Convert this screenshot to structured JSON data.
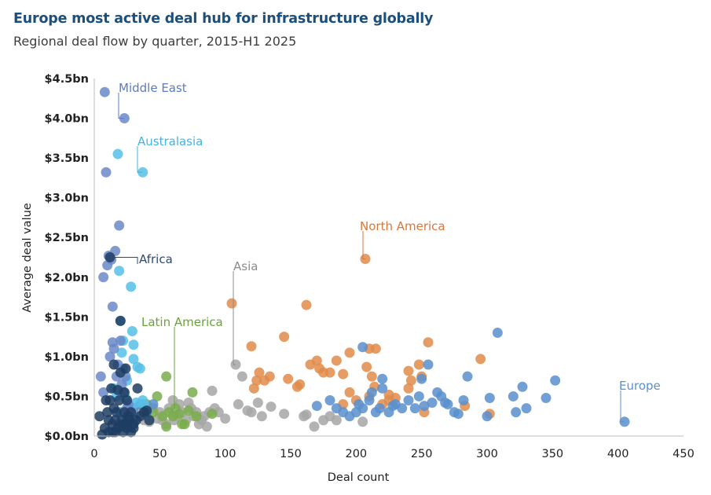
{
  "header": {
    "title": "Europe most active deal hub for infrastructure globally",
    "subtitle": "Regional deal flow by quarter, 2015-H1 2025"
  },
  "chart_data": {
    "type": "scatter",
    "title": "Europe most active deal hub for infrastructure globally",
    "subtitle": "Regional deal flow by quarter, 2015-H1 2025",
    "xlabel": "Deal count",
    "ylabel": "Average deal value",
    "xlim": [
      0,
      450
    ],
    "ylim": [
      0,
      4.5
    ],
    "x_ticks": [
      0,
      50,
      100,
      150,
      200,
      250,
      300,
      350,
      400,
      450
    ],
    "x_tick_labels": [
      "0",
      "50",
      "100",
      "150",
      "200",
      "250",
      "300",
      "350",
      "400",
      "450"
    ],
    "y_ticks": [
      0,
      0.5,
      1.0,
      1.5,
      2.0,
      2.5,
      3.0,
      3.5,
      4.0,
      4.5
    ],
    "y_tick_labels": [
      "$0.0bn",
      "$0.5bn",
      "$1.0bn",
      "$1.5bn",
      "$2.0bn",
      "$2.5bn",
      "$3.0bn",
      "$3.5bn",
      "$4.0bn",
      "$4.5bn"
    ],
    "grid": false,
    "legend": "direct labels",
    "series": [
      {
        "name": "Asia",
        "color": "#a6a6a6",
        "label_color": "#8c8c8c",
        "points": [
          [
            35,
            0.3
          ],
          [
            38,
            0.2
          ],
          [
            40,
            0.25
          ],
          [
            42,
            0.18
          ],
          [
            45,
            0.35
          ],
          [
            48,
            0.22
          ],
          [
            50,
            0.3
          ],
          [
            52,
            0.2
          ],
          [
            55,
            0.15
          ],
          [
            57,
            0.35
          ],
          [
            60,
            0.45
          ],
          [
            61,
            0.2
          ],
          [
            63,
            0.25
          ],
          [
            65,
            0.4
          ],
          [
            67,
            0.3
          ],
          [
            70,
            0.2
          ],
          [
            72,
            0.42
          ],
          [
            74,
            0.35
          ],
          [
            76,
            0.25
          ],
          [
            78,
            0.3
          ],
          [
            80,
            0.15
          ],
          [
            82,
            0.2
          ],
          [
            84,
            0.25
          ],
          [
            86,
            0.12
          ],
          [
            88,
            0.3
          ],
          [
            90,
            0.57
          ],
          [
            92,
            0.35
          ],
          [
            95,
            0.3
          ],
          [
            100,
            0.22
          ],
          [
            108,
            0.9
          ],
          [
            110,
            0.4
          ],
          [
            113,
            0.75
          ],
          [
            117,
            0.32
          ],
          [
            120,
            0.3
          ],
          [
            125,
            0.42
          ],
          [
            128,
            0.25
          ],
          [
            135,
            0.37
          ],
          [
            145,
            0.28
          ],
          [
            160,
            0.25
          ],
          [
            162,
            0.27
          ],
          [
            168,
            0.12
          ],
          [
            175,
            0.2
          ],
          [
            180,
            0.25
          ],
          [
            185,
            0.2
          ],
          [
            205,
            0.18
          ]
        ]
      },
      {
        "name": "Latin America",
        "color": "#7aad4c",
        "label_color": "#6aa33c",
        "points": [
          [
            40,
            0.4
          ],
          [
            45,
            0.3
          ],
          [
            48,
            0.5
          ],
          [
            52,
            0.25
          ],
          [
            55,
            0.12
          ],
          [
            57,
            0.3
          ],
          [
            60,
            0.25
          ],
          [
            62,
            0.35
          ],
          [
            65,
            0.28
          ],
          [
            67,
            0.15
          ],
          [
            69,
            0.15
          ],
          [
            72,
            0.32
          ],
          [
            75,
            0.55
          ],
          [
            78,
            0.25
          ],
          [
            90,
            0.28
          ],
          [
            55,
            0.75
          ]
        ]
      },
      {
        "name": "North America",
        "color": "#e08b4a",
        "label_color": "#d9773a",
        "points": [
          [
            105,
            1.67
          ],
          [
            120,
            1.13
          ],
          [
            122,
            0.6
          ],
          [
            124,
            0.7
          ],
          [
            126,
            0.8
          ],
          [
            130,
            0.7
          ],
          [
            134,
            0.75
          ],
          [
            145,
            1.25
          ],
          [
            148,
            0.72
          ],
          [
            155,
            0.62
          ],
          [
            157,
            0.65
          ],
          [
            162,
            1.65
          ],
          [
            165,
            0.9
          ],
          [
            170,
            0.95
          ],
          [
            172,
            0.85
          ],
          [
            175,
            0.8
          ],
          [
            180,
            0.8
          ],
          [
            185,
            0.95
          ],
          [
            190,
            0.78
          ],
          [
            190,
            0.4
          ],
          [
            195,
            0.55
          ],
          [
            195,
            1.05
          ],
          [
            207,
            2.23
          ],
          [
            208,
            0.87
          ],
          [
            210,
            1.1
          ],
          [
            212,
            0.75
          ],
          [
            214,
            0.62
          ],
          [
            215,
            1.1
          ],
          [
            220,
            0.4
          ],
          [
            225,
            0.52
          ],
          [
            230,
            0.48
          ],
          [
            240,
            0.82
          ],
          [
            242,
            0.7
          ],
          [
            248,
            0.9
          ],
          [
            250,
            0.75
          ],
          [
            252,
            0.3
          ],
          [
            255,
            1.18
          ],
          [
            283,
            0.38
          ],
          [
            295,
            0.97
          ],
          [
            302,
            0.28
          ],
          [
            210,
            0.5
          ],
          [
            200,
            0.45
          ],
          [
            225,
            0.45
          ],
          [
            240,
            0.6
          ]
        ]
      },
      {
        "name": "Europe",
        "color": "#5b8fcd",
        "label_color": "#5b8fcd",
        "points": [
          [
            20,
            0.3
          ],
          [
            25,
            0.25
          ],
          [
            30,
            0.35
          ],
          [
            35,
            0.4
          ],
          [
            40,
            0.3
          ],
          [
            45,
            0.4
          ],
          [
            170,
            0.38
          ],
          [
            180,
            0.45
          ],
          [
            185,
            0.35
          ],
          [
            190,
            0.3
          ],
          [
            195,
            0.25
          ],
          [
            200,
            0.3
          ],
          [
            202,
            0.4
          ],
          [
            205,
            1.12
          ],
          [
            205,
            0.35
          ],
          [
            210,
            0.45
          ],
          [
            212,
            0.55
          ],
          [
            215,
            0.3
          ],
          [
            218,
            0.35
          ],
          [
            220,
            0.6
          ],
          [
            220,
            0.72
          ],
          [
            225,
            0.3
          ],
          [
            228,
            0.38
          ],
          [
            230,
            0.4
          ],
          [
            235,
            0.35
          ],
          [
            240,
            0.45
          ],
          [
            245,
            0.35
          ],
          [
            248,
            0.5
          ],
          [
            250,
            0.72
          ],
          [
            252,
            0.38
          ],
          [
            255,
            0.9
          ],
          [
            258,
            0.42
          ],
          [
            262,
            0.55
          ],
          [
            265,
            0.5
          ],
          [
            268,
            0.42
          ],
          [
            270,
            0.4
          ],
          [
            275,
            0.3
          ],
          [
            278,
            0.28
          ],
          [
            282,
            0.45
          ],
          [
            285,
            0.75
          ],
          [
            300,
            0.25
          ],
          [
            302,
            0.48
          ],
          [
            308,
            1.3
          ],
          [
            320,
            0.5
          ],
          [
            322,
            0.3
          ],
          [
            327,
            0.62
          ],
          [
            330,
            0.35
          ],
          [
            345,
            0.48
          ],
          [
            352,
            0.7
          ],
          [
            405,
            0.18
          ]
        ]
      },
      {
        "name": "Australasia",
        "color": "#56bfe8",
        "label_color": "#42b4e4",
        "points": [
          [
            15,
            0.6
          ],
          [
            17,
            0.5
          ],
          [
            18,
            3.55
          ],
          [
            19,
            2.08
          ],
          [
            20,
            1.45
          ],
          [
            21,
            1.05
          ],
          [
            22,
            1.2
          ],
          [
            23,
            0.55
          ],
          [
            24,
            0.48
          ],
          [
            25,
            0.7
          ],
          [
            27,
            0.3
          ],
          [
            28,
            1.88
          ],
          [
            29,
            1.32
          ],
          [
            30,
            1.15
          ],
          [
            30,
            0.97
          ],
          [
            31,
            0.2
          ],
          [
            32,
            0.42
          ],
          [
            33,
            0.87
          ],
          [
            35,
            0.85
          ],
          [
            37,
            0.45
          ],
          [
            37,
            3.32
          ],
          [
            38,
            0.4
          ]
        ]
      },
      {
        "name": "Middle East",
        "color": "#6b88c8",
        "label_color": "#5c7bc0",
        "points": [
          [
            5,
            0.75
          ],
          [
            7,
            0.55
          ],
          [
            8,
            4.33
          ],
          [
            9,
            3.32
          ],
          [
            10,
            2.15
          ],
          [
            11,
            2.27
          ],
          [
            12,
            1.0
          ],
          [
            13,
            2.22
          ],
          [
            14,
            1.63
          ],
          [
            15,
            1.1
          ],
          [
            16,
            2.33
          ],
          [
            17,
            0.75
          ],
          [
            18,
            0.9
          ],
          [
            19,
            2.65
          ],
          [
            20,
            1.2
          ],
          [
            21,
            0.65
          ],
          [
            22,
            0.55
          ],
          [
            23,
            4.0
          ],
          [
            24,
            0.75
          ],
          [
            25,
            0.35
          ],
          [
            26,
            0.4
          ],
          [
            27,
            0.2
          ],
          [
            28,
            0.3
          ],
          [
            22,
            0.85
          ],
          [
            14,
            1.18
          ],
          [
            7,
            2.0
          ]
        ]
      },
      {
        "name": "Africa",
        "color": "#1f3d63",
        "label_color": "#2d4a72",
        "points": [
          [
            4,
            0.25
          ],
          [
            6,
            0.02
          ],
          [
            8,
            0.1
          ],
          [
            9,
            0.45
          ],
          [
            10,
            0.3
          ],
          [
            11,
            0.2
          ],
          [
            11,
            0.05
          ],
          [
            12,
            0.45
          ],
          [
            13,
            0.6
          ],
          [
            14,
            0.15
          ],
          [
            15,
            0.35
          ],
          [
            16,
            0.2
          ],
          [
            17,
            0.3
          ],
          [
            18,
            0.1
          ],
          [
            18,
            0.58
          ],
          [
            19,
            0.45
          ],
          [
            20,
            1.45
          ],
          [
            20,
            0.8
          ],
          [
            21,
            0.2
          ],
          [
            22,
            0.05
          ],
          [
            23,
            0.3
          ],
          [
            23,
            0.55
          ],
          [
            24,
            0.15
          ],
          [
            25,
            0.1
          ],
          [
            25,
            0.45
          ],
          [
            26,
            0.25
          ],
          [
            27,
            0.2
          ],
          [
            28,
            0.3
          ],
          [
            30,
            0.15
          ],
          [
            30,
            0.1
          ],
          [
            32,
            0.2
          ],
          [
            33,
            0.6
          ],
          [
            35,
            0.25
          ],
          [
            38,
            0.3
          ],
          [
            40,
            0.32
          ],
          [
            42,
            0.2
          ],
          [
            12,
            2.25
          ],
          [
            15,
            0.9
          ],
          [
            20,
            0.12
          ],
          [
            14,
            0.05
          ],
          [
            28,
            0.05
          ],
          [
            24,
            0.85
          ],
          [
            16,
            0.05
          ],
          [
            22,
            0.15
          ]
        ]
      }
    ],
    "annotations": [
      {
        "series": "Middle East",
        "text": "Middle East",
        "point": [
          23,
          4.0
        ],
        "label_pos": [
          151,
          118
        ],
        "elbow": [
          151,
          118
        ]
      },
      {
        "series": "Australasia",
        "text": "Australasia",
        "point": [
          37,
          3.32
        ],
        "label_pos": [
          175,
          186
        ],
        "elbow": [
          175,
          186
        ]
      },
      {
        "series": "Africa",
        "text": "Africa",
        "point": [
          12,
          2.25
        ],
        "label_pos": [
          177,
          336
        ],
        "elbow": [
          175,
          336
        ]
      },
      {
        "series": "Asia",
        "text": "Asia",
        "point": [
          108,
          0.9
        ],
        "label_pos": [
          297,
          345
        ],
        "elbow": [
          297,
          345
        ]
      },
      {
        "series": "Latin America",
        "text": "Latin America",
        "point": [
          62,
          0.35
        ],
        "label_pos": [
          180,
          416
        ],
        "elbow": [
          222,
          416
        ]
      },
      {
        "series": "North America",
        "text": "North America",
        "point": [
          207,
          2.23
        ],
        "label_pos": [
          458,
          294
        ],
        "elbow": [
          462,
          294
        ]
      },
      {
        "series": "Europe",
        "text": "Europe",
        "point": [
          405,
          0.18
        ],
        "label_pos": [
          788,
          497
        ],
        "elbow": [
          790,
          497
        ]
      }
    ]
  }
}
